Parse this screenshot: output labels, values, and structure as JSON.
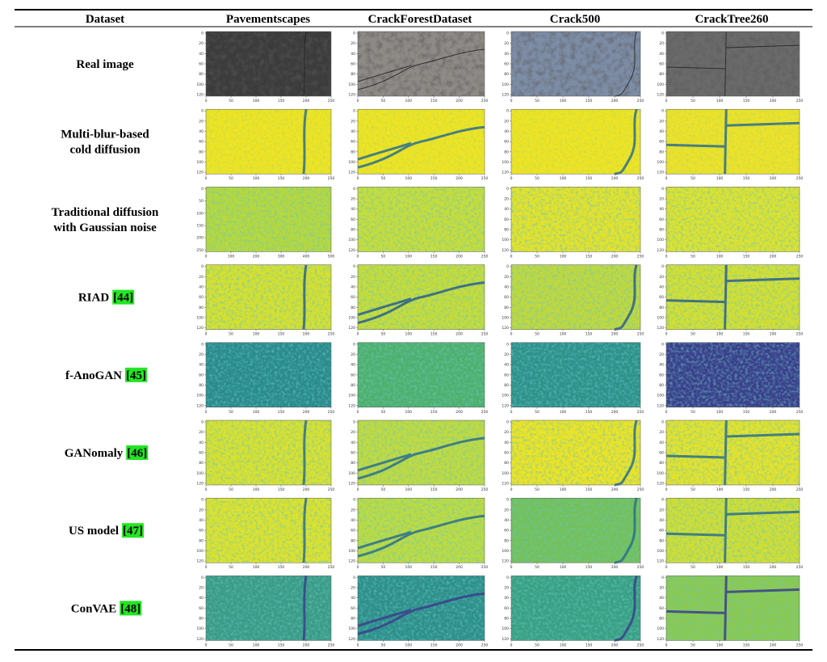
{
  "table": {
    "header": [
      "Dataset",
      "Pavementscapes",
      "CrackForestDataset",
      "Crack500",
      "CrackTree260"
    ],
    "rows": [
      {
        "label": [
          "Real image"
        ],
        "panels": [
          {
            "xticks": [
              0,
              50,
              100,
              150,
              200,
              250
            ],
            "yticks": [
              0,
              20,
              40,
              60,
              80,
              100,
              120
            ]
          },
          {
            "xticks": [
              0,
              50,
              100,
              150,
              200,
              250
            ],
            "yticks": [
              0,
              20,
              40,
              60,
              80,
              100,
              120
            ]
          },
          {
            "xticks": [
              0,
              50,
              100,
              150,
              200,
              250
            ],
            "yticks": [
              0,
              20,
              40,
              60,
              80,
              100,
              120
            ]
          },
          {
            "xticks": [
              0,
              50,
              100,
              150,
              200,
              250
            ],
            "yticks": [
              0,
              20,
              40,
              60,
              80,
              100,
              120
            ]
          }
        ]
      },
      {
        "label": [
          "Multi-blur-based",
          "cold diffusion"
        ],
        "panels": [
          {
            "xticks": [
              0,
              50,
              100,
              150,
              200,
              250
            ],
            "yticks": [
              0,
              20,
              40,
              60,
              80,
              100,
              120
            ]
          },
          {
            "xticks": [
              0,
              50,
              100,
              150,
              200,
              250
            ],
            "yticks": [
              0,
              20,
              40,
              60,
              80,
              100,
              120
            ]
          },
          {
            "xticks": [
              0,
              50,
              100,
              150,
              200,
              250
            ],
            "yticks": [
              0,
              20,
              40,
              60,
              80,
              100,
              120
            ]
          },
          {
            "xticks": [
              0,
              50,
              100,
              150,
              200,
              250
            ],
            "yticks": [
              0,
              20,
              40,
              60,
              80,
              100,
              120
            ]
          }
        ]
      },
      {
        "label": [
          "Traditional diffusion",
          "with Gaussian noise"
        ],
        "panels": [
          {
            "xticks": [
              0,
              100,
              200,
              300,
              400,
              500
            ],
            "yticks": [
              0,
              50,
              100,
              150,
              200,
              250
            ]
          },
          {
            "xticks": [
              0,
              50,
              100,
              150,
              200,
              250
            ],
            "yticks": [
              0,
              20,
              40,
              60,
              80,
              100,
              120
            ]
          },
          {
            "xticks": [
              0,
              50,
              100,
              150,
              200,
              250
            ],
            "yticks": [
              0,
              20,
              40,
              60,
              80,
              100,
              120
            ]
          },
          {
            "xticks": [
              0,
              50,
              100,
              150,
              200,
              250
            ],
            "yticks": [
              0,
              20,
              40,
              60,
              80,
              100,
              120
            ]
          }
        ]
      },
      {
        "label": [
          "RIAD"
        ],
        "ref": "[44]",
        "panels": [
          {
            "xticks": [
              0,
              50,
              100,
              150,
              200,
              250
            ],
            "yticks": [
              0,
              20,
              40,
              60,
              80,
              100,
              120
            ]
          },
          {
            "xticks": [
              0,
              50,
              100,
              150,
              200,
              250
            ],
            "yticks": [
              0,
              20,
              40,
              60,
              80,
              100,
              120
            ]
          },
          {
            "xticks": [
              0,
              50,
              100,
              150,
              200,
              250
            ],
            "yticks": [
              0,
              20,
              40,
              60,
              80,
              100,
              120
            ]
          },
          {
            "xticks": [
              0,
              50,
              100,
              150,
              200,
              250
            ],
            "yticks": [
              0,
              20,
              40,
              60,
              80,
              100,
              120
            ]
          }
        ]
      },
      {
        "label": [
          "f-AnoGAN"
        ],
        "ref": "[45]",
        "panels": [
          {
            "xticks": [
              0,
              50,
              100,
              150,
              200,
              250
            ],
            "yticks": [
              0,
              20,
              40,
              60,
              80,
              100,
              120
            ]
          },
          {
            "xticks": [
              0,
              50,
              100,
              150,
              200,
              250
            ],
            "yticks": [
              0,
              20,
              40,
              60,
              80,
              100,
              120
            ]
          },
          {
            "xticks": [
              0,
              50,
              100,
              150,
              200,
              250
            ],
            "yticks": [
              0,
              20,
              40,
              60,
              80,
              100,
              120
            ]
          },
          {
            "xticks": [
              0,
              50,
              100,
              150,
              200,
              250
            ],
            "yticks": [
              0,
              20,
              40,
              60,
              80,
              100,
              120
            ]
          }
        ]
      },
      {
        "label": [
          "GANomaly"
        ],
        "ref": "[46]",
        "panels": [
          {
            "xticks": [
              0,
              50,
              100,
              150,
              200,
              250
            ],
            "yticks": [
              0,
              20,
              40,
              60,
              80,
              100,
              120
            ]
          },
          {
            "xticks": [
              0,
              50,
              100,
              150,
              200,
              250
            ],
            "yticks": [
              0,
              20,
              40,
              60,
              80,
              100,
              120
            ]
          },
          {
            "xticks": [
              0,
              50,
              100,
              150,
              200,
              250
            ],
            "yticks": [
              0,
              20,
              40,
              60,
              80,
              100,
              120
            ]
          },
          {
            "xticks": [
              0,
              50,
              100,
              150,
              200,
              250
            ],
            "yticks": [
              0,
              20,
              40,
              60,
              80,
              100,
              120
            ]
          }
        ]
      },
      {
        "label": [
          "US model"
        ],
        "ref": "[47]",
        "panels": [
          {
            "xticks": [
              0,
              50,
              100,
              150,
              200,
              250
            ],
            "yticks": [
              0,
              20,
              40,
              60,
              80,
              100,
              120
            ]
          },
          {
            "xticks": [
              0,
              50,
              100,
              150,
              200,
              250
            ],
            "yticks": [
              0,
              20,
              40,
              60,
              80,
              100,
              120
            ]
          },
          {
            "xticks": [
              0,
              50,
              100,
              150,
              200,
              250
            ],
            "yticks": [
              0,
              20,
              40,
              60,
              80,
              100,
              120
            ]
          },
          {
            "xticks": [
              0,
              50,
              100,
              150,
              200,
              250
            ],
            "yticks": [
              0,
              20,
              40,
              60,
              80,
              100,
              120
            ]
          }
        ]
      },
      {
        "label": [
          "ConVAE"
        ],
        "ref": "[48]",
        "panels": [
          {
            "xticks": [
              0,
              50,
              100,
              150,
              200,
              250
            ],
            "yticks": [
              0,
              20,
              40,
              60,
              80,
              100,
              120
            ]
          },
          {
            "xticks": [
              0,
              50,
              100,
              150,
              200,
              250
            ],
            "yticks": [
              0,
              20,
              40,
              60,
              80,
              100,
              120
            ]
          },
          {
            "xticks": [
              0,
              50,
              100,
              150,
              200,
              250
            ],
            "yticks": [
              0,
              20,
              40,
              60,
              80,
              100,
              120
            ]
          },
          {
            "xticks": [
              0,
              50,
              100,
              150,
              200,
              250
            ],
            "yticks": [
              0,
              20,
              40,
              60,
              80,
              100,
              120
            ]
          }
        ]
      }
    ]
  }
}
